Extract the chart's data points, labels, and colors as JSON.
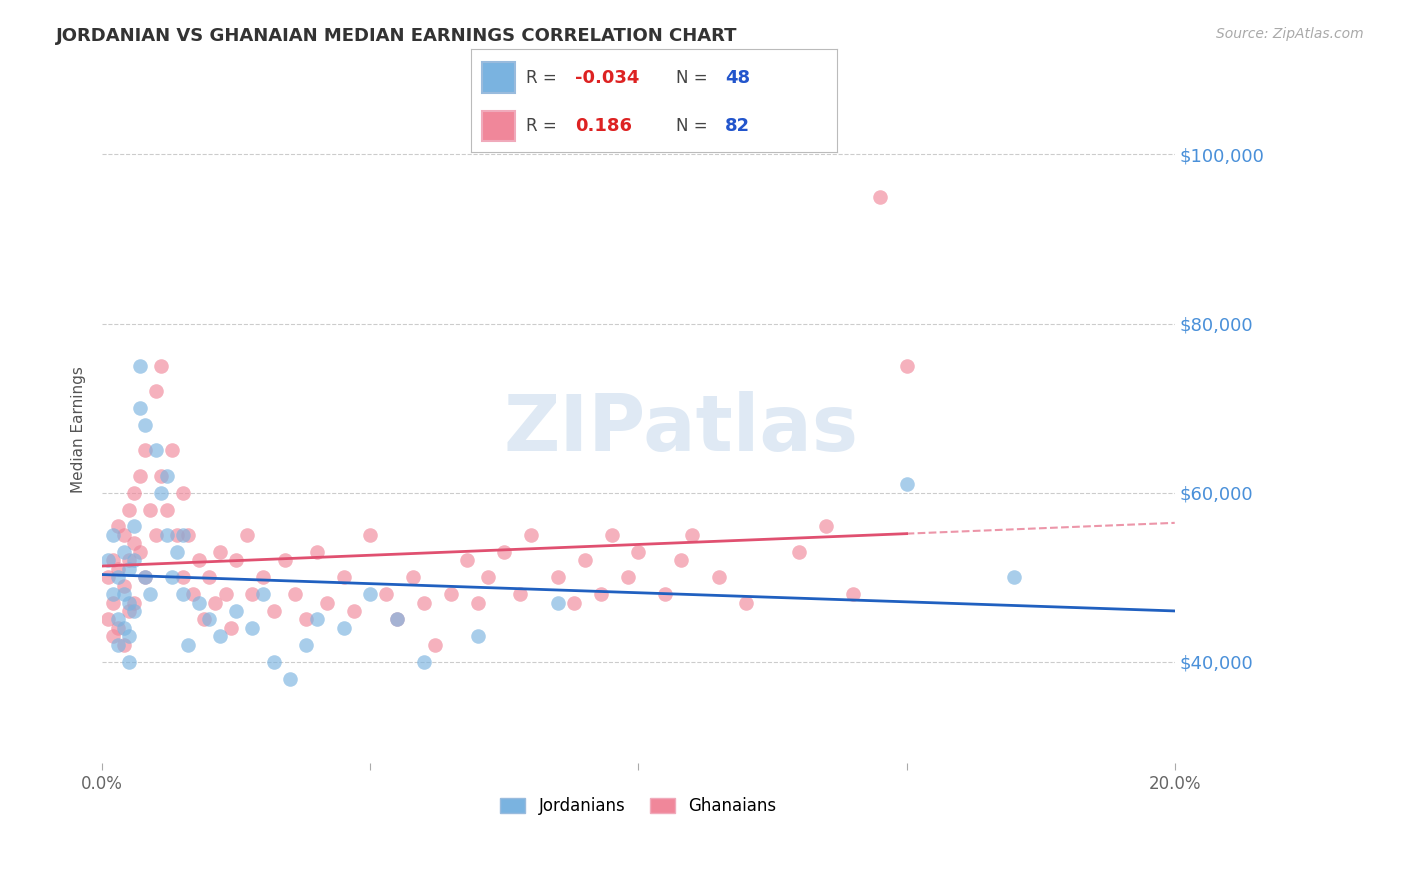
{
  "title": "JORDANIAN VS GHANAIAN MEDIAN EARNINGS CORRELATION CHART",
  "source_text": "Source: ZipAtlas.com",
  "ylabel": "Median Earnings",
  "watermark": "ZIPatlas",
  "xlim": [
    0.0,
    0.2
  ],
  "ylim": [
    28000,
    107000
  ],
  "yticks": [
    40000,
    60000,
    80000,
    100000
  ],
  "yticklabels": [
    "$40,000",
    "$60,000",
    "$80,000",
    "$100,000"
  ],
  "background_color": "#ffffff",
  "grid_color": "#cccccc",
  "title_color": "#333333",
  "y_label_color": "#4a90d9",
  "jordanians_color": "#7ab3e0",
  "ghanaians_color": "#f0879a",
  "jordanians_line_color": "#2060c0",
  "ghanaians_line_color": "#e05070",
  "legend_r_jordanians": "-0.034",
  "legend_n_jordanians": "48",
  "legend_r_ghanaians": "0.186",
  "legend_n_ghanaians": "82",
  "legend_label_jordanians": "Jordanians",
  "legend_label_ghanaians": "Ghanaians",
  "jordanians_x": [
    0.001,
    0.002,
    0.002,
    0.003,
    0.003,
    0.003,
    0.004,
    0.004,
    0.004,
    0.005,
    0.005,
    0.005,
    0.005,
    0.006,
    0.006,
    0.006,
    0.007,
    0.007,
    0.008,
    0.008,
    0.009,
    0.01,
    0.011,
    0.012,
    0.012,
    0.013,
    0.014,
    0.015,
    0.015,
    0.016,
    0.018,
    0.02,
    0.022,
    0.025,
    0.028,
    0.03,
    0.032,
    0.035,
    0.038,
    0.04,
    0.045,
    0.05,
    0.055,
    0.06,
    0.07,
    0.085,
    0.15,
    0.17
  ],
  "jordanians_y": [
    52000,
    55000,
    48000,
    50000,
    45000,
    42000,
    53000,
    48000,
    44000,
    51000,
    47000,
    43000,
    40000,
    56000,
    52000,
    46000,
    75000,
    70000,
    68000,
    50000,
    48000,
    65000,
    60000,
    62000,
    55000,
    50000,
    53000,
    55000,
    48000,
    42000,
    47000,
    45000,
    43000,
    46000,
    44000,
    48000,
    40000,
    38000,
    42000,
    45000,
    44000,
    48000,
    45000,
    40000,
    43000,
    47000,
    61000,
    50000
  ],
  "ghanaians_x": [
    0.001,
    0.001,
    0.002,
    0.002,
    0.002,
    0.003,
    0.003,
    0.003,
    0.004,
    0.004,
    0.004,
    0.005,
    0.005,
    0.005,
    0.006,
    0.006,
    0.006,
    0.007,
    0.007,
    0.008,
    0.008,
    0.009,
    0.01,
    0.01,
    0.011,
    0.011,
    0.012,
    0.013,
    0.014,
    0.015,
    0.015,
    0.016,
    0.017,
    0.018,
    0.019,
    0.02,
    0.021,
    0.022,
    0.023,
    0.024,
    0.025,
    0.027,
    0.028,
    0.03,
    0.032,
    0.034,
    0.036,
    0.038,
    0.04,
    0.042,
    0.045,
    0.047,
    0.05,
    0.053,
    0.055,
    0.058,
    0.06,
    0.062,
    0.065,
    0.068,
    0.07,
    0.072,
    0.075,
    0.078,
    0.08,
    0.085,
    0.088,
    0.09,
    0.093,
    0.095,
    0.098,
    0.1,
    0.105,
    0.108,
    0.11,
    0.115,
    0.12,
    0.13,
    0.135,
    0.14,
    0.145,
    0.15
  ],
  "ghanaians_y": [
    50000,
    45000,
    52000,
    47000,
    43000,
    56000,
    51000,
    44000,
    55000,
    49000,
    42000,
    58000,
    52000,
    46000,
    60000,
    54000,
    47000,
    62000,
    53000,
    65000,
    50000,
    58000,
    72000,
    55000,
    75000,
    62000,
    58000,
    65000,
    55000,
    60000,
    50000,
    55000,
    48000,
    52000,
    45000,
    50000,
    47000,
    53000,
    48000,
    44000,
    52000,
    55000,
    48000,
    50000,
    46000,
    52000,
    48000,
    45000,
    53000,
    47000,
    50000,
    46000,
    55000,
    48000,
    45000,
    50000,
    47000,
    42000,
    48000,
    52000,
    47000,
    50000,
    53000,
    48000,
    55000,
    50000,
    47000,
    52000,
    48000,
    55000,
    50000,
    53000,
    48000,
    52000,
    55000,
    50000,
    47000,
    53000,
    56000,
    48000,
    95000,
    75000
  ]
}
